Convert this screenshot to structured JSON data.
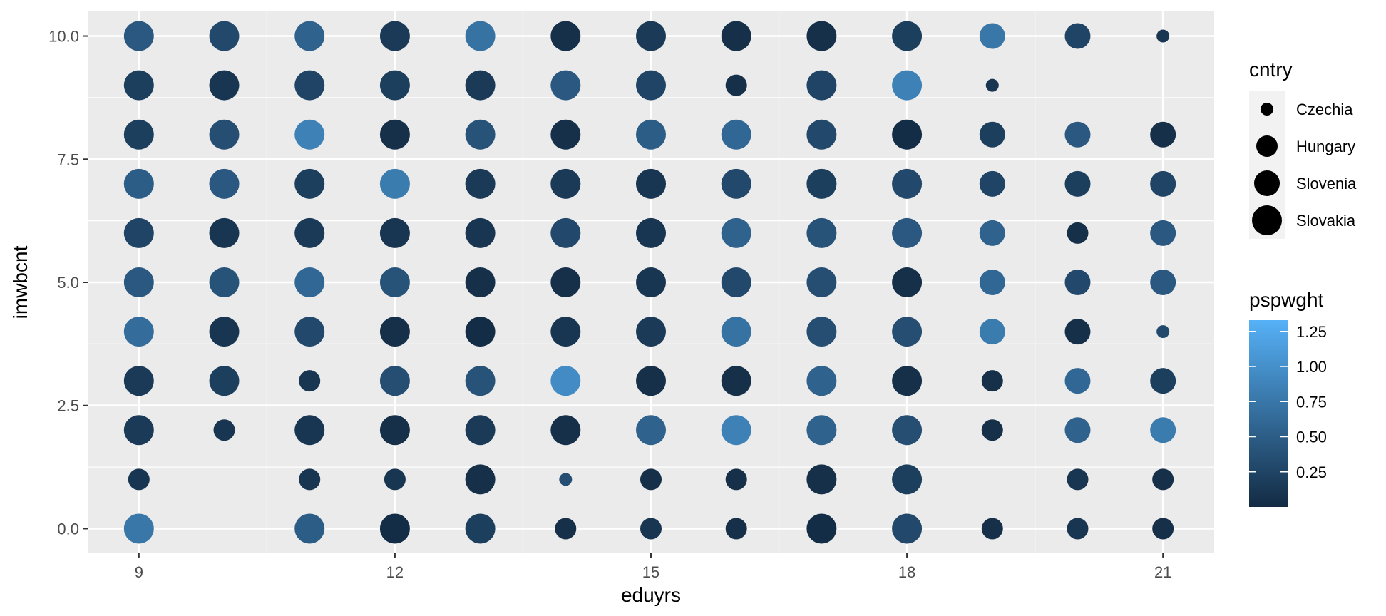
{
  "chart_data": {
    "type": "scatter",
    "title": "",
    "xlabel": "eduyrs",
    "ylabel": "imwbcnt",
    "xlim": [
      8.4,
      21.6
    ],
    "ylim": [
      -0.5,
      10.5
    ],
    "x_ticks": [
      9,
      12,
      15,
      18,
      21
    ],
    "x_tick_labels": [
      "9",
      "12",
      "15",
      "18",
      "21"
    ],
    "y_ticks": [
      0,
      2.5,
      5,
      7.5,
      10
    ],
    "y_tick_labels": [
      "0.0",
      "2.5",
      "5.0",
      "7.5",
      "10.0"
    ],
    "grid": true,
    "panel_background": "#ebebeb",
    "size_legend": {
      "title": "cntry",
      "position": "right",
      "entries": [
        "Czechia",
        "Hungary",
        "Slovenia",
        "Slovakia"
      ]
    },
    "color_legend": {
      "title": "pspwght",
      "position": "right",
      "range": [
        0.0,
        1.33
      ],
      "low_color": "#132b43",
      "high_color": "#56b1f7",
      "ticks": [
        0.25,
        0.5,
        0.75,
        1.0,
        1.25
      ],
      "tick_labels": [
        "0.25",
        "0.50",
        "0.75",
        "1.00",
        "1.25"
      ]
    },
    "points": [
      {
        "x": 9,
        "y": 10,
        "cntry": "Slovakia",
        "w": 0.45
      },
      {
        "x": 9,
        "y": 9,
        "cntry": "Slovakia",
        "w": 0.2
      },
      {
        "x": 9,
        "y": 8,
        "cntry": "Slovakia",
        "w": 0.2
      },
      {
        "x": 9,
        "y": 7,
        "cntry": "Slovakia",
        "w": 0.5
      },
      {
        "x": 9,
        "y": 6,
        "cntry": "Slovakia",
        "w": 0.25
      },
      {
        "x": 9,
        "y": 5,
        "cntry": "Slovakia",
        "w": 0.45
      },
      {
        "x": 9,
        "y": 4,
        "cntry": "Slovakia",
        "w": 0.65
      },
      {
        "x": 9,
        "y": 3,
        "cntry": "Slovakia",
        "w": 0.15
      },
      {
        "x": 9,
        "y": 2,
        "cntry": "Slovakia",
        "w": 0.15
      },
      {
        "x": 9,
        "y": 1,
        "cntry": "Hungary",
        "w": 0.1
      },
      {
        "x": 9,
        "y": 0,
        "cntry": "Slovakia",
        "w": 0.75
      },
      {
        "x": 10,
        "y": 10,
        "cntry": "Slovakia",
        "w": 0.3
      },
      {
        "x": 10,
        "y": 9,
        "cntry": "Slovakia",
        "w": 0.1
      },
      {
        "x": 10,
        "y": 8,
        "cntry": "Slovakia",
        "w": 0.35
      },
      {
        "x": 10,
        "y": 7,
        "cntry": "Slovakia",
        "w": 0.45
      },
      {
        "x": 10,
        "y": 6,
        "cntry": "Slovakia",
        "w": 0.1
      },
      {
        "x": 10,
        "y": 5,
        "cntry": "Slovakia",
        "w": 0.4
      },
      {
        "x": 10,
        "y": 4,
        "cntry": "Slovakia",
        "w": 0.1
      },
      {
        "x": 10,
        "y": 3,
        "cntry": "Slovakia",
        "w": 0.2
      },
      {
        "x": 10,
        "y": 2,
        "cntry": "Hungary",
        "w": 0.1
      },
      {
        "x": 11,
        "y": 10,
        "cntry": "Slovakia",
        "w": 0.55
      },
      {
        "x": 11,
        "y": 9,
        "cntry": "Slovakia",
        "w": 0.25
      },
      {
        "x": 11,
        "y": 8,
        "cntry": "Slovakia",
        "w": 0.85
      },
      {
        "x": 11,
        "y": 7,
        "cntry": "Slovakia",
        "w": 0.2
      },
      {
        "x": 11,
        "y": 6,
        "cntry": "Slovakia",
        "w": 0.15
      },
      {
        "x": 11,
        "y": 5,
        "cntry": "Slovakia",
        "w": 0.6
      },
      {
        "x": 11,
        "y": 4,
        "cntry": "Slovakia",
        "w": 0.3
      },
      {
        "x": 11,
        "y": 3,
        "cntry": "Hungary",
        "w": 0.1
      },
      {
        "x": 11,
        "y": 2,
        "cntry": "Slovakia",
        "w": 0.1
      },
      {
        "x": 11,
        "y": 1,
        "cntry": "Hungary",
        "w": 0.1
      },
      {
        "x": 11,
        "y": 0,
        "cntry": "Slovakia",
        "w": 0.5
      },
      {
        "x": 12,
        "y": 10,
        "cntry": "Slovakia",
        "w": 0.15
      },
      {
        "x": 12,
        "y": 9,
        "cntry": "Slovakia",
        "w": 0.2
      },
      {
        "x": 12,
        "y": 8,
        "cntry": "Slovakia",
        "w": 0.05
      },
      {
        "x": 12,
        "y": 7,
        "cntry": "Slovakia",
        "w": 0.8
      },
      {
        "x": 12,
        "y": 6,
        "cntry": "Slovakia",
        "w": 0.1
      },
      {
        "x": 12,
        "y": 5,
        "cntry": "Slovakia",
        "w": 0.4
      },
      {
        "x": 12,
        "y": 4,
        "cntry": "Slovakia",
        "w": 0.05
      },
      {
        "x": 12,
        "y": 3,
        "cntry": "Slovakia",
        "w": 0.35
      },
      {
        "x": 12,
        "y": 2,
        "cntry": "Slovakia",
        "w": 0.05
      },
      {
        "x": 12,
        "y": 1,
        "cntry": "Hungary",
        "w": 0.1
      },
      {
        "x": 12,
        "y": 0,
        "cntry": "Slovakia",
        "w": 0.02
      },
      {
        "x": 13,
        "y": 10,
        "cntry": "Slovakia",
        "w": 0.7
      },
      {
        "x": 13,
        "y": 9,
        "cntry": "Slovakia",
        "w": 0.15
      },
      {
        "x": 13,
        "y": 8,
        "cntry": "Slovakia",
        "w": 0.4
      },
      {
        "x": 13,
        "y": 7,
        "cntry": "Slovakia",
        "w": 0.15
      },
      {
        "x": 13,
        "y": 6,
        "cntry": "Slovakia",
        "w": 0.1
      },
      {
        "x": 13,
        "y": 5,
        "cntry": "Slovakia",
        "w": 0.05
      },
      {
        "x": 13,
        "y": 4,
        "cntry": "Slovakia",
        "w": 0.02
      },
      {
        "x": 13,
        "y": 3,
        "cntry": "Slovakia",
        "w": 0.4
      },
      {
        "x": 13,
        "y": 2,
        "cntry": "Slovakia",
        "w": 0.15
      },
      {
        "x": 13,
        "y": 1,
        "cntry": "Slovakia",
        "w": 0.05
      },
      {
        "x": 13,
        "y": 0,
        "cntry": "Slovakia",
        "w": 0.2
      },
      {
        "x": 14,
        "y": 10,
        "cntry": "Slovakia",
        "w": 0.05
      },
      {
        "x": 14,
        "y": 9,
        "cntry": "Slovakia",
        "w": 0.45
      },
      {
        "x": 14,
        "y": 8,
        "cntry": "Slovakia",
        "w": 0.05
      },
      {
        "x": 14,
        "y": 7,
        "cntry": "Slovakia",
        "w": 0.15
      },
      {
        "x": 14,
        "y": 6,
        "cntry": "Slovakia",
        "w": 0.3
      },
      {
        "x": 14,
        "y": 5,
        "cntry": "Slovakia",
        "w": 0.05
      },
      {
        "x": 14,
        "y": 4,
        "cntry": "Slovakia",
        "w": 0.1
      },
      {
        "x": 14,
        "y": 3,
        "cntry": "Slovakia",
        "w": 0.95
      },
      {
        "x": 14,
        "y": 2,
        "cntry": "Slovakia",
        "w": 0.05
      },
      {
        "x": 14,
        "y": 1,
        "cntry": "Czechia",
        "w": 0.35
      },
      {
        "x": 14,
        "y": 0,
        "cntry": "Hungary",
        "w": 0.05
      },
      {
        "x": 15,
        "y": 10,
        "cntry": "Slovakia",
        "w": 0.15
      },
      {
        "x": 15,
        "y": 9,
        "cntry": "Slovakia",
        "w": 0.25
      },
      {
        "x": 15,
        "y": 8,
        "cntry": "Slovakia",
        "w": 0.5
      },
      {
        "x": 15,
        "y": 7,
        "cntry": "Slovakia",
        "w": 0.1
      },
      {
        "x": 15,
        "y": 6,
        "cntry": "Slovakia",
        "w": 0.1
      },
      {
        "x": 15,
        "y": 5,
        "cntry": "Slovakia",
        "w": 0.1
      },
      {
        "x": 15,
        "y": 4,
        "cntry": "Slovakia",
        "w": 0.15
      },
      {
        "x": 15,
        "y": 3,
        "cntry": "Slovakia",
        "w": 0.05
      },
      {
        "x": 15,
        "y": 2,
        "cntry": "Slovakia",
        "w": 0.55
      },
      {
        "x": 15,
        "y": 1,
        "cntry": "Hungary",
        "w": 0.05
      },
      {
        "x": 15,
        "y": 0,
        "cntry": "Hungary",
        "w": 0.1
      },
      {
        "x": 16,
        "y": 10,
        "cntry": "Slovakia",
        "w": 0.05
      },
      {
        "x": 16,
        "y": 9,
        "cntry": "Hungary",
        "w": 0.05
      },
      {
        "x": 16,
        "y": 8,
        "cntry": "Slovakia",
        "w": 0.6
      },
      {
        "x": 16,
        "y": 7,
        "cntry": "Slovakia",
        "w": 0.3
      },
      {
        "x": 16,
        "y": 6,
        "cntry": "Slovakia",
        "w": 0.55
      },
      {
        "x": 16,
        "y": 5,
        "cntry": "Slovakia",
        "w": 0.3
      },
      {
        "x": 16,
        "y": 4,
        "cntry": "Slovakia",
        "w": 0.7
      },
      {
        "x": 16,
        "y": 3,
        "cntry": "Slovakia",
        "w": 0.05
      },
      {
        "x": 16,
        "y": 2,
        "cntry": "Slovakia",
        "w": 0.85
      },
      {
        "x": 16,
        "y": 1,
        "cntry": "Hungary",
        "w": 0.05
      },
      {
        "x": 16,
        "y": 0,
        "cntry": "Hungary",
        "w": 0.05
      },
      {
        "x": 17,
        "y": 10,
        "cntry": "Slovakia",
        "w": 0.05
      },
      {
        "x": 17,
        "y": 9,
        "cntry": "Slovakia",
        "w": 0.25
      },
      {
        "x": 17,
        "y": 8,
        "cntry": "Slovakia",
        "w": 0.3
      },
      {
        "x": 17,
        "y": 7,
        "cntry": "Slovakia",
        "w": 0.2
      },
      {
        "x": 17,
        "y": 6,
        "cntry": "Slovakia",
        "w": 0.4
      },
      {
        "x": 17,
        "y": 5,
        "cntry": "Slovakia",
        "w": 0.35
      },
      {
        "x": 17,
        "y": 4,
        "cntry": "Slovakia",
        "w": 0.35
      },
      {
        "x": 17,
        "y": 3,
        "cntry": "Slovakia",
        "w": 0.55
      },
      {
        "x": 17,
        "y": 2,
        "cntry": "Slovakia",
        "w": 0.55
      },
      {
        "x": 17,
        "y": 1,
        "cntry": "Slovakia",
        "w": 0.05
      },
      {
        "x": 17,
        "y": 0,
        "cntry": "Slovakia",
        "w": 0.02
      },
      {
        "x": 18,
        "y": 10,
        "cntry": "Slovakia",
        "w": 0.2
      },
      {
        "x": 18,
        "y": 9,
        "cntry": "Slovakia",
        "w": 0.85
      },
      {
        "x": 18,
        "y": 8,
        "cntry": "Slovakia",
        "w": 0.02
      },
      {
        "x": 18,
        "y": 7,
        "cntry": "Slovakia",
        "w": 0.3
      },
      {
        "x": 18,
        "y": 6,
        "cntry": "Slovakia",
        "w": 0.45
      },
      {
        "x": 18,
        "y": 5,
        "cntry": "Slovakia",
        "w": 0.05
      },
      {
        "x": 18,
        "y": 4,
        "cntry": "Slovakia",
        "w": 0.35
      },
      {
        "x": 18,
        "y": 3,
        "cntry": "Slovakia",
        "w": 0.05
      },
      {
        "x": 18,
        "y": 2,
        "cntry": "Slovakia",
        "w": 0.35
      },
      {
        "x": 18,
        "y": 1,
        "cntry": "Slovakia",
        "w": 0.2
      },
      {
        "x": 18,
        "y": 0,
        "cntry": "Slovakia",
        "w": 0.3
      },
      {
        "x": 19,
        "y": 10,
        "cntry": "Slovenia",
        "w": 0.75
      },
      {
        "x": 19,
        "y": 9,
        "cntry": "Czechia",
        "w": 0.1
      },
      {
        "x": 19,
        "y": 8,
        "cntry": "Slovenia",
        "w": 0.2
      },
      {
        "x": 19,
        "y": 7,
        "cntry": "Slovenia",
        "w": 0.25
      },
      {
        "x": 19,
        "y": 6,
        "cntry": "Slovenia",
        "w": 0.55
      },
      {
        "x": 19,
        "y": 5,
        "cntry": "Slovenia",
        "w": 0.6
      },
      {
        "x": 19,
        "y": 4,
        "cntry": "Slovenia",
        "w": 0.8
      },
      {
        "x": 19,
        "y": 3,
        "cntry": "Hungary",
        "w": 0.05
      },
      {
        "x": 19,
        "y": 2,
        "cntry": "Hungary",
        "w": 0.05
      },
      {
        "x": 19,
        "y": 0,
        "cntry": "Hungary",
        "w": 0.05
      },
      {
        "x": 20,
        "y": 10,
        "cntry": "Slovenia",
        "w": 0.25
      },
      {
        "x": 20,
        "y": 8,
        "cntry": "Slovenia",
        "w": 0.45
      },
      {
        "x": 20,
        "y": 7,
        "cntry": "Slovenia",
        "w": 0.2
      },
      {
        "x": 20,
        "y": 6,
        "cntry": "Hungary",
        "w": 0.05
      },
      {
        "x": 20,
        "y": 5,
        "cntry": "Slovenia",
        "w": 0.3
      },
      {
        "x": 20,
        "y": 4,
        "cntry": "Slovenia",
        "w": 0.05
      },
      {
        "x": 20,
        "y": 3,
        "cntry": "Slovenia",
        "w": 0.6
      },
      {
        "x": 20,
        "y": 2,
        "cntry": "Slovenia",
        "w": 0.55
      },
      {
        "x": 20,
        "y": 1,
        "cntry": "Hungary",
        "w": 0.1
      },
      {
        "x": 20,
        "y": 0,
        "cntry": "Hungary",
        "w": 0.1
      },
      {
        "x": 21,
        "y": 10,
        "cntry": "Czechia",
        "w": 0.1
      },
      {
        "x": 21,
        "y": 8,
        "cntry": "Slovenia",
        "w": 0.05
      },
      {
        "x": 21,
        "y": 7,
        "cntry": "Slovenia",
        "w": 0.25
      },
      {
        "x": 21,
        "y": 6,
        "cntry": "Slovenia",
        "w": 0.45
      },
      {
        "x": 21,
        "y": 5,
        "cntry": "Slovenia",
        "w": 0.45
      },
      {
        "x": 21,
        "y": 4,
        "cntry": "Czechia",
        "w": 0.3
      },
      {
        "x": 21,
        "y": 3,
        "cntry": "Slovenia",
        "w": 0.2
      },
      {
        "x": 21,
        "y": 2,
        "cntry": "Slovenia",
        "w": 0.8
      },
      {
        "x": 21,
        "y": 1,
        "cntry": "Hungary",
        "w": 0.05
      },
      {
        "x": 21,
        "y": 0,
        "cntry": "Hungary",
        "w": 0.05
      }
    ]
  }
}
